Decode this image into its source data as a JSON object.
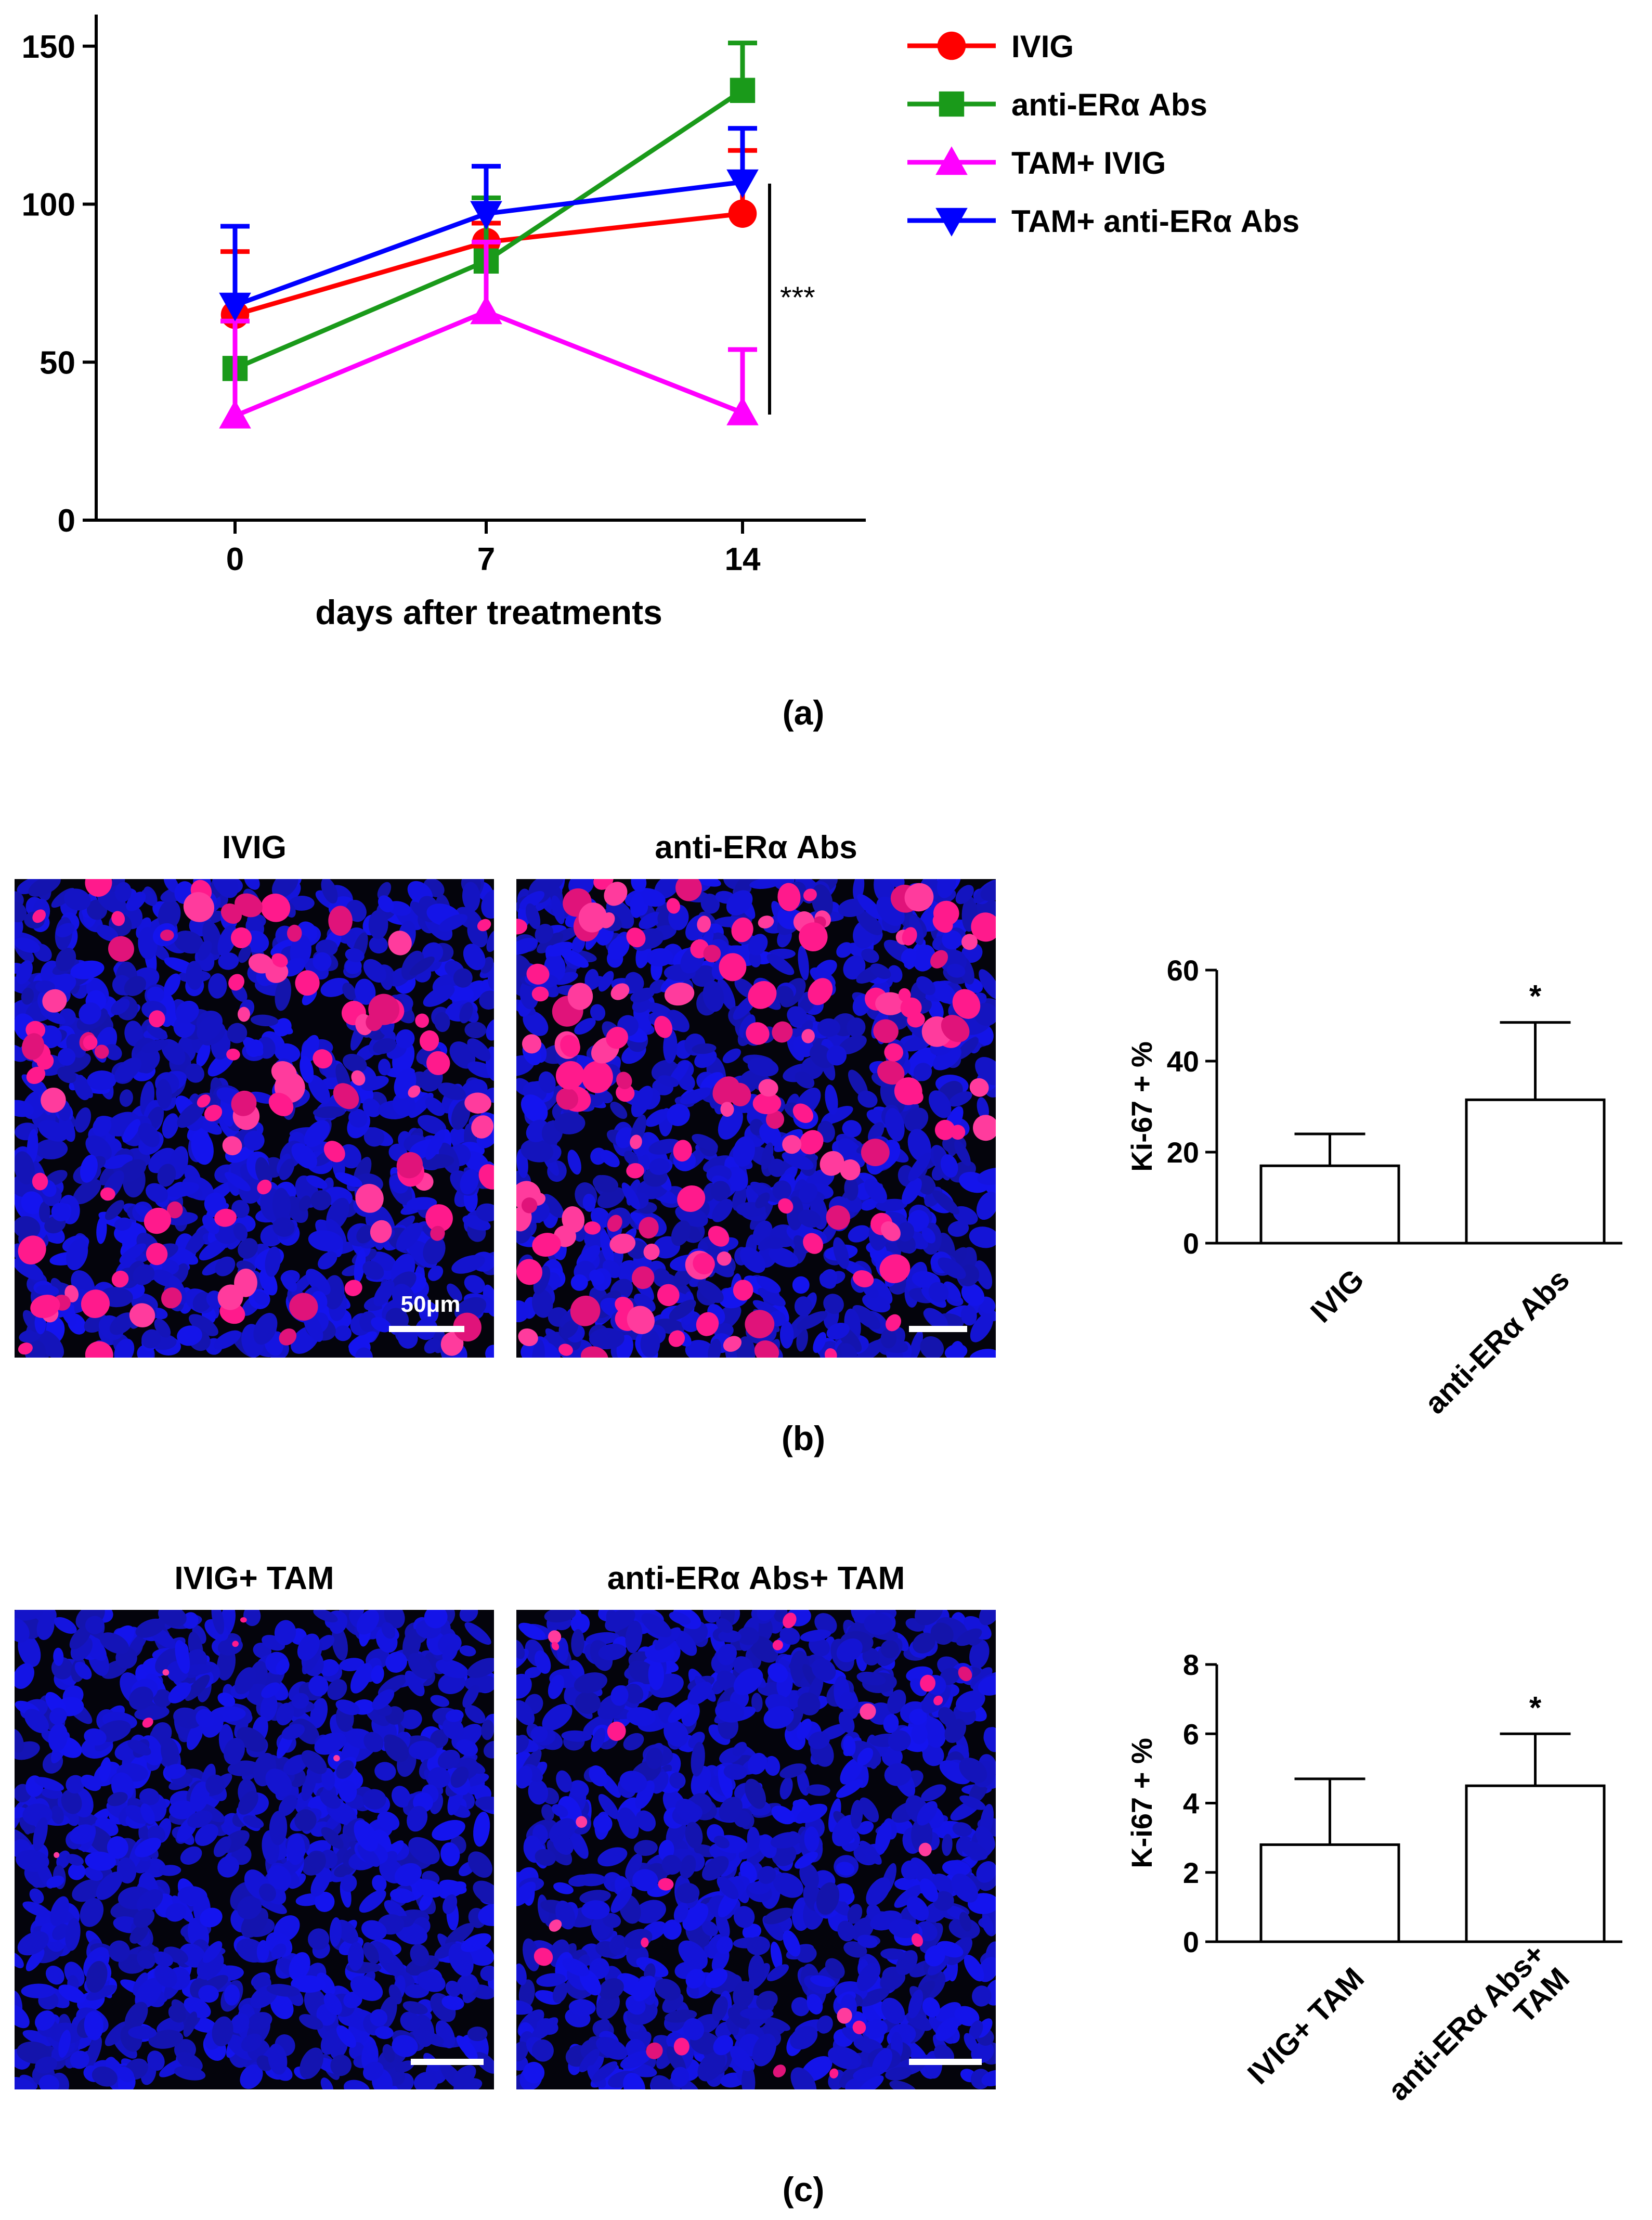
{
  "chart_data": [
    {
      "type": "line",
      "panel_label": "(a)",
      "xlabel": "days after treatments",
      "ylabel": "",
      "categories": [
        "0",
        "7",
        "14"
      ],
      "ylim": [
        0,
        160
      ],
      "yticks": [
        "0",
        "50",
        "100",
        "150"
      ],
      "series": [
        {
          "name": "IVIG",
          "color": "#ff0000",
          "marker": "circle",
          "values": [
            65,
            88,
            97
          ],
          "err": [
            20,
            6,
            20
          ]
        },
        {
          "name": "anti-ERα Abs",
          "color": "#1a9a1a",
          "marker": "square",
          "values": [
            48,
            82,
            136
          ],
          "err": [
            15,
            20,
            15
          ]
        },
        {
          "name": "TAM+ IVIG",
          "color": "#ff00ff",
          "marker": "triangle-up",
          "values": [
            33,
            66,
            34
          ],
          "err": [
            30,
            22,
            20
          ]
        },
        {
          "name": "TAM+ anti-ERα Abs",
          "color": "#0000ff",
          "marker": "triangle-down",
          "values": [
            68,
            97,
            107
          ],
          "err": [
            25,
            15,
            17
          ]
        }
      ],
      "annotation": "***"
    },
    {
      "type": "bar",
      "panel_label": "(b)",
      "categories": [
        "IVIG",
        "anti-ERα Abs"
      ],
      "values": [
        17,
        31.5
      ],
      "err": [
        7,
        17
      ],
      "ylabel": "Ki-67 + %",
      "ylim": [
        0,
        60
      ],
      "yticks": [
        "0",
        "20",
        "40",
        "60"
      ],
      "annotations": [
        "",
        "*"
      ]
    },
    {
      "type": "bar",
      "panel_label": "(c)",
      "categories": [
        "IVIG+ TAM",
        "anti-ERα Abs+\nTAM"
      ],
      "values": [
        2.8,
        4.5
      ],
      "err": [
        1.9,
        1.5
      ],
      "ylabel": "K-i67 + %",
      "ylim": [
        0,
        8
      ],
      "yticks": [
        "0",
        "2",
        "4",
        "6",
        "8"
      ],
      "annotations": [
        "",
        "*"
      ]
    }
  ],
  "micrographs": {
    "b_left_title": "IVIG",
    "b_right_title": "anti-ERα Abs",
    "c_left_title": "IVIG+ TAM",
    "c_right_title": "anti-ERα Abs+ TAM",
    "scale_label": "50μm",
    "colors": {
      "background": "#04040c",
      "nucleus": "#1f1fd6",
      "ki67": "#ff1a8c"
    }
  }
}
